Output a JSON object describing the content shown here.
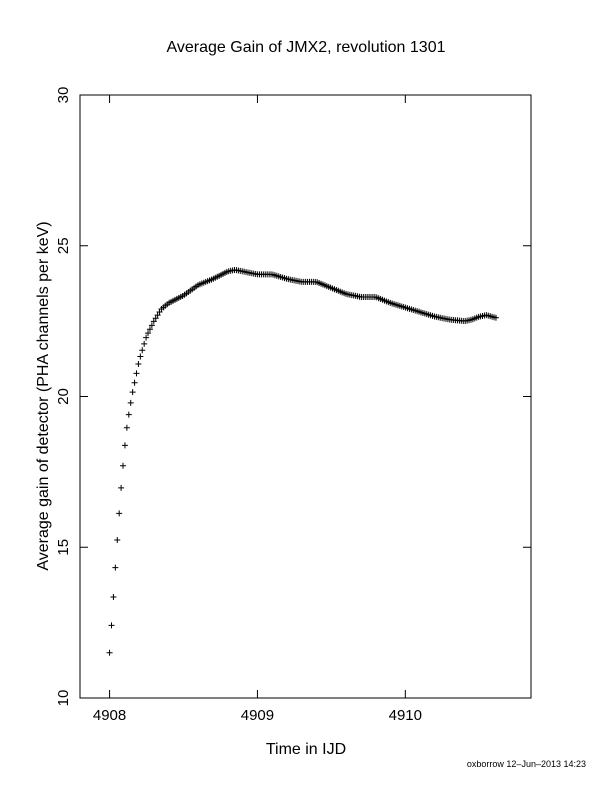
{
  "chart_data": {
    "type": "scatter",
    "title": "Average Gain of JMX2, revolution 1301",
    "xlabel": "Time in IJD",
    "ylabel": "Average gain of detector (PHA channels per keV)",
    "xlim": [
      4907.8,
      4910.85
    ],
    "ylim": [
      10,
      30
    ],
    "x_ticks": [
      4908,
      4909,
      4910
    ],
    "x_tick_labels": [
      "4908",
      "4909",
      "4910"
    ],
    "y_ticks": [
      10,
      15,
      20,
      25,
      30
    ],
    "y_tick_labels": [
      "10",
      "15",
      "20",
      "25",
      "30"
    ],
    "grid": false,
    "legend": "none",
    "marker": "plus",
    "color": "#000000",
    "x_start": 4908.0,
    "x_end": 4910.62,
    "x_step": 0.013,
    "curve": {
      "x": [
        4908.0,
        4908.02,
        4908.04,
        4908.06,
        4908.08,
        4908.1,
        4908.12,
        4908.15,
        4908.2,
        4908.25,
        4908.3,
        4908.35,
        4908.4,
        4908.5,
        4908.6,
        4908.7,
        4908.8,
        4908.85,
        4908.9,
        4909.0,
        4909.1,
        4909.2,
        4909.3,
        4909.4,
        4909.5,
        4909.6,
        4909.7,
        4909.8,
        4909.9,
        4910.0,
        4910.1,
        4910.2,
        4910.3,
        4910.4,
        4910.45,
        4910.5,
        4910.55,
        4910.62
      ],
      "y": [
        11.5,
        12.9,
        14.4,
        15.8,
        17.1,
        18.2,
        19.1,
        20.0,
        21.2,
        22.0,
        22.5,
        22.9,
        23.1,
        23.35,
        23.7,
        23.9,
        24.15,
        24.2,
        24.15,
        24.05,
        24.05,
        23.9,
        23.8,
        23.8,
        23.6,
        23.4,
        23.3,
        23.3,
        23.1,
        22.95,
        22.8,
        22.65,
        22.55,
        22.5,
        22.55,
        22.65,
        22.7,
        22.6
      ]
    }
  },
  "footer": {
    "credit": "oxborrow 12–Jun–2013 14:23"
  }
}
